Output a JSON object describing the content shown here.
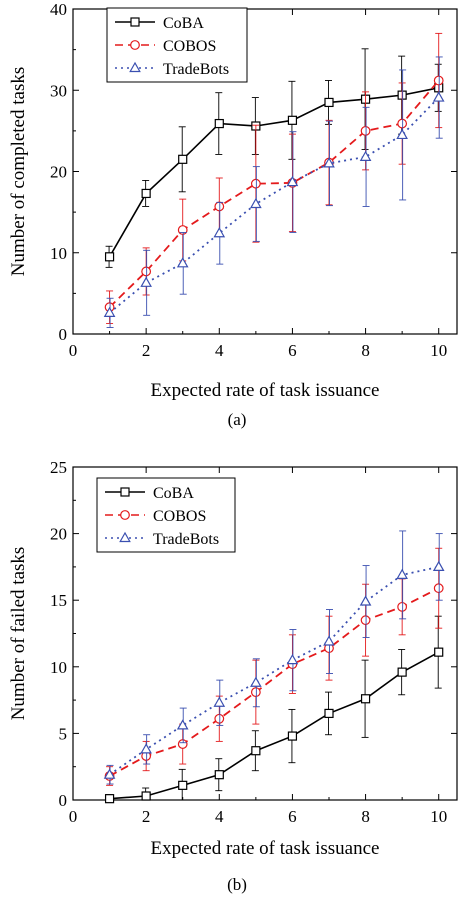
{
  "chart_data": [
    {
      "type": "line",
      "panel_label": "(a)",
      "xlabel": "Expected rate of task issuance",
      "ylabel": "Number of completed tasks",
      "xlim": [
        0,
        10.5
      ],
      "ylim": [
        0,
        40
      ],
      "xticks": [
        0,
        2,
        4,
        6,
        8,
        10
      ],
      "yticks": [
        0,
        10,
        20,
        30,
        40
      ],
      "legend": "top-left",
      "x": [
        1,
        2,
        3,
        4,
        5,
        6,
        7,
        8,
        9,
        10
      ],
      "series": [
        {
          "name": "CoBA",
          "color": "#000000",
          "dash": "solid",
          "marker": "square",
          "values": [
            9.5,
            17.3,
            21.5,
            25.9,
            25.6,
            26.3,
            28.5,
            28.9,
            29.4,
            30.3
          ],
          "err": [
            1.3,
            1.6,
            4.0,
            3.8,
            3.5,
            4.8,
            2.7,
            6.2,
            4.8,
            2.9
          ]
        },
        {
          "name": "COBOS",
          "color": "#e41a1c",
          "dash": "dashed",
          "marker": "circle",
          "values": [
            3.3,
            7.7,
            12.8,
            15.7,
            18.5,
            18.6,
            21.1,
            25.0,
            25.9,
            31.2
          ],
          "err": [
            2.0,
            2.9,
            3.8,
            3.5,
            7.2,
            6.0,
            5.2,
            4.8,
            5.0,
            5.8
          ]
        },
        {
          "name": "TradeBots",
          "color": "#3a4fb0",
          "dash": "dotted",
          "marker": "triangle",
          "values": [
            2.6,
            6.3,
            8.7,
            12.4,
            16.0,
            18.7,
            21.0,
            21.8,
            24.5,
            29.1
          ],
          "err": [
            1.8,
            4.0,
            3.8,
            3.8,
            4.6,
            6.2,
            5.2,
            6.1,
            8.0,
            5.0
          ]
        }
      ]
    },
    {
      "type": "line",
      "panel_label": "(b)",
      "xlabel": "Expected rate of task issuance",
      "ylabel": "Number of failed tasks",
      "xlim": [
        0,
        10.5
      ],
      "ylim": [
        0,
        25
      ],
      "xticks": [
        0,
        2,
        4,
        6,
        8,
        10
      ],
      "yticks": [
        0,
        5,
        10,
        15,
        20,
        25
      ],
      "legend": "top-left",
      "x": [
        1,
        2,
        3,
        4,
        5,
        6,
        7,
        8,
        9,
        10
      ],
      "series": [
        {
          "name": "CoBA",
          "color": "#000000",
          "dash": "solid",
          "marker": "square",
          "values": [
            0.1,
            0.3,
            1.1,
            1.9,
            3.7,
            4.8,
            6.5,
            7.6,
            9.6,
            11.1
          ],
          "err": [
            0.3,
            0.6,
            1.2,
            1.2,
            1.5,
            2.0,
            1.6,
            2.9,
            1.7,
            2.7
          ]
        },
        {
          "name": "COBOS",
          "color": "#e41a1c",
          "dash": "dashed",
          "marker": "circle",
          "values": [
            1.8,
            3.3,
            4.2,
            6.1,
            8.1,
            10.2,
            11.4,
            13.5,
            14.5,
            15.9
          ],
          "err": [
            0.7,
            1.1,
            1.5,
            1.7,
            2.4,
            2.2,
            2.4,
            2.7,
            2.1,
            3.0
          ]
        },
        {
          "name": "TradeBots",
          "color": "#3a4fb0",
          "dash": "dotted",
          "marker": "triangle",
          "values": [
            1.9,
            3.8,
            5.6,
            7.3,
            8.8,
            10.5,
            11.9,
            14.9,
            16.9,
            17.5
          ],
          "err": [
            0.7,
            1.1,
            1.3,
            1.7,
            1.8,
            2.3,
            2.4,
            2.7,
            3.3,
            2.5
          ]
        }
      ]
    }
  ]
}
